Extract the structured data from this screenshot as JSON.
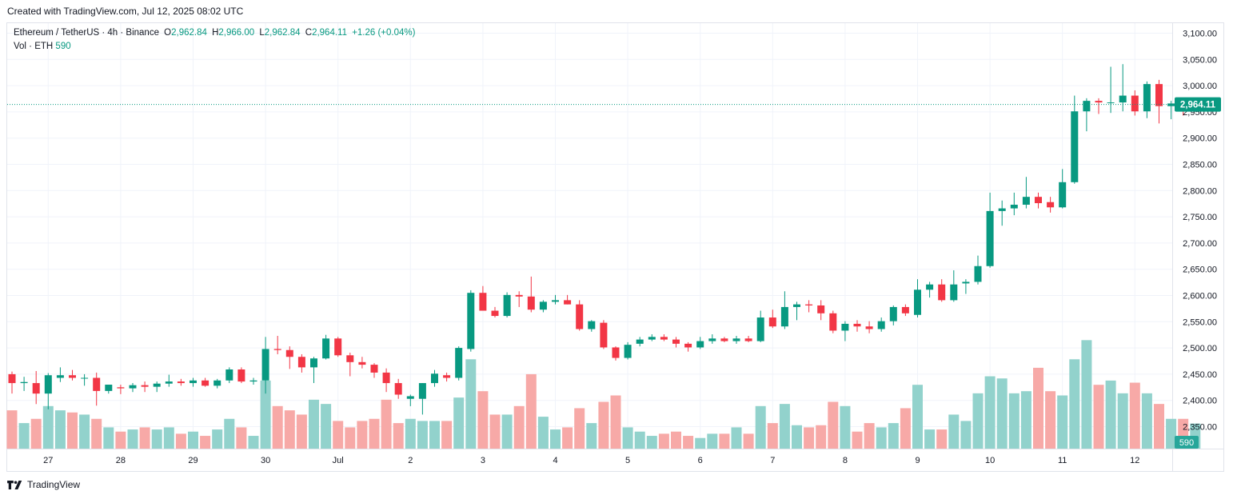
{
  "header": {
    "created_text": "Created with TradingView.com, Jul 12, 2025 08:02 UTC"
  },
  "legend": {
    "symbol": "Ethereum / TetherUS · 4h · Binance",
    "o_label": "O",
    "o_value": "2,962.84",
    "h_label": "H",
    "h_value": "2,966.00",
    "l_label": "L",
    "l_value": "2,962.84",
    "c_label": "C",
    "c_value": "2,964.11",
    "change": "+1.26 (+0.04%)",
    "vol_label": "Vol · ETH",
    "vol_value": "590"
  },
  "footer": {
    "brand": "TradingView"
  },
  "colors": {
    "up": "#089981",
    "down": "#f23645",
    "up_vol": "#92d2cc",
    "down_vol": "#f7a9a7",
    "grid": "#f0f3fa",
    "text": "#131722"
  },
  "chart_data": {
    "type": "candlestick",
    "title": "Ethereum / TetherUS · 4h · Binance",
    "ylim": [
      2300,
      3110
    ],
    "y_ticks": [
      3100,
      3050,
      3000,
      2950,
      2900,
      2850,
      2800,
      2750,
      2700,
      2650,
      2600,
      2550,
      2500,
      2450,
      2400,
      2350
    ],
    "y_tick_labels": [
      "3,100.00",
      "3,050.00",
      "3,000.00",
      "2,950.00",
      "2,900.00",
      "2,850.00",
      "2,800.00",
      "2,750.00",
      "2,700.00",
      "2,650.00",
      "2,600.00",
      "2,550.00",
      "2,500.00",
      "2,450.00",
      "2,400.00",
      "2,350.00"
    ],
    "x_labels": [
      {
        "label": "27",
        "index": 3
      },
      {
        "label": "28",
        "index": 9
      },
      {
        "label": "29",
        "index": 15
      },
      {
        "label": "30",
        "index": 21
      },
      {
        "label": "Jul",
        "index": 27
      },
      {
        "label": "2",
        "index": 33
      },
      {
        "label": "3",
        "index": 39
      },
      {
        "label": "4",
        "index": 45
      },
      {
        "label": "5",
        "index": 51
      },
      {
        "label": "6",
        "index": 57
      },
      {
        "label": "7",
        "index": 63
      },
      {
        "label": "8",
        "index": 69
      },
      {
        "label": "9",
        "index": 75
      },
      {
        "label": "10",
        "index": 81
      },
      {
        "label": "11",
        "index": 87
      },
      {
        "label": "12",
        "index": 93
      }
    ],
    "last_price": 2964.11,
    "last_price_label": "2,964.11",
    "last_volume_label": "590",
    "vol_max": 2500,
    "candles": [
      [
        2450,
        2455,
        2413,
        2433,
        900
      ],
      [
        2433,
        2445,
        2418,
        2435,
        600
      ],
      [
        2433,
        2456,
        2393,
        2413,
        700
      ],
      [
        2413,
        2452,
        2383,
        2448,
        1000
      ],
      [
        2443,
        2463,
        2435,
        2448,
        900
      ],
      [
        2448,
        2458,
        2438,
        2443,
        850
      ],
      [
        2443,
        2450,
        2428,
        2443,
        800
      ],
      [
        2443,
        2453,
        2390,
        2418,
        700
      ],
      [
        2418,
        2428,
        2413,
        2430,
        500
      ],
      [
        2425,
        2430,
        2412,
        2423,
        400
      ],
      [
        2423,
        2433,
        2416,
        2429,
        450
      ],
      [
        2429,
        2436,
        2416,
        2426,
        500
      ],
      [
        2426,
        2436,
        2416,
        2432,
        450
      ],
      [
        2432,
        2449,
        2426,
        2436,
        500
      ],
      [
        2436,
        2441,
        2428,
        2433,
        350
      ],
      [
        2433,
        2443,
        2426,
        2438,
        400
      ],
      [
        2438,
        2443,
        2426,
        2428,
        300
      ],
      [
        2428,
        2441,
        2423,
        2438,
        450
      ],
      [
        2438,
        2463,
        2433,
        2459,
        700
      ],
      [
        2459,
        2463,
        2433,
        2436,
        500
      ],
      [
        2436,
        2443,
        2430,
        2438,
        300
      ],
      [
        2438,
        2521,
        2413,
        2498,
        1600
      ],
      [
        2498,
        2523,
        2488,
        2496,
        1000
      ],
      [
        2496,
        2503,
        2460,
        2483,
        900
      ],
      [
        2483,
        2488,
        2453,
        2463,
        800
      ],
      [
        2463,
        2483,
        2433,
        2480,
        1150
      ],
      [
        2480,
        2525,
        2478,
        2518,
        1050
      ],
      [
        2518,
        2521,
        2483,
        2486,
        650
      ],
      [
        2486,
        2491,
        2446,
        2473,
        500
      ],
      [
        2473,
        2483,
        2461,
        2468,
        650
      ],
      [
        2468,
        2471,
        2443,
        2453,
        700
      ],
      [
        2453,
        2461,
        2416,
        2433,
        1150
      ],
      [
        2433,
        2441,
        2403,
        2411,
        600
      ],
      [
        2403,
        2411,
        2389,
        2408,
        700
      ],
      [
        2403,
        2433,
        2373,
        2433,
        650
      ],
      [
        2433,
        2458,
        2426,
        2451,
        650
      ],
      [
        2448,
        2453,
        2436,
        2443,
        650
      ],
      [
        2443,
        2503,
        2438,
        2500,
        1200
      ],
      [
        2498,
        2610,
        2493,
        2605,
        2100
      ],
      [
        2605,
        2618,
        2573,
        2571,
        1350
      ],
      [
        2571,
        2578,
        2558,
        2561,
        800
      ],
      [
        2561,
        2606,
        2558,
        2601,
        800
      ],
      [
        2601,
        2608,
        2578,
        2598,
        1000
      ],
      [
        2598,
        2636,
        2568,
        2573,
        1750
      ],
      [
        2573,
        2591,
        2568,
        2588,
        750
      ],
      [
        2588,
        2601,
        2583,
        2591,
        450
      ],
      [
        2591,
        2601,
        2583,
        2583,
        500
      ],
      [
        2583,
        2591,
        2533,
        2536,
        950
      ],
      [
        2536,
        2553,
        2531,
        2551,
        600
      ],
      [
        2548,
        2553,
        2498,
        2501,
        1100
      ],
      [
        2501,
        2503,
        2476,
        2481,
        1250
      ],
      [
        2481,
        2511,
        2478,
        2506,
        500
      ],
      [
        2508,
        2521,
        2503,
        2516,
        400
      ],
      [
        2516,
        2526,
        2513,
        2521,
        300
      ],
      [
        2521,
        2526,
        2513,
        2516,
        350
      ],
      [
        2516,
        2521,
        2501,
        2508,
        400
      ],
      [
        2508,
        2511,
        2493,
        2501,
        300
      ],
      [
        2501,
        2521,
        2498,
        2513,
        250
      ],
      [
        2513,
        2526,
        2508,
        2518,
        350
      ],
      [
        2518,
        2521,
        2511,
        2513,
        350
      ],
      [
        2513,
        2523,
        2508,
        2518,
        500
      ],
      [
        2518,
        2523,
        2511,
        2513,
        350
      ],
      [
        2513,
        2571,
        2511,
        2558,
        1000
      ],
      [
        2558,
        2573,
        2538,
        2541,
        600
      ],
      [
        2541,
        2608,
        2536,
        2578,
        1050
      ],
      [
        2578,
        2588,
        2553,
        2583,
        550
      ],
      [
        2583,
        2591,
        2568,
        2581,
        500
      ],
      [
        2581,
        2591,
        2553,
        2566,
        550
      ],
      [
        2566,
        2571,
        2528,
        2533,
        1100
      ],
      [
        2533,
        2551,
        2513,
        2546,
        1000
      ],
      [
        2546,
        2553,
        2531,
        2541,
        400
      ],
      [
        2541,
        2551,
        2528,
        2536,
        600
      ],
      [
        2536,
        2558,
        2531,
        2551,
        500
      ],
      [
        2551,
        2581,
        2543,
        2578,
        600
      ],
      [
        2578,
        2583,
        2561,
        2566,
        950
      ],
      [
        2563,
        2631,
        2558,
        2611,
        1500
      ],
      [
        2611,
        2626,
        2596,
        2621,
        450
      ],
      [
        2621,
        2631,
        2588,
        2591,
        450
      ],
      [
        2591,
        2648,
        2588,
        2621,
        800
      ],
      [
        2623,
        2631,
        2603,
        2626,
        650
      ],
      [
        2626,
        2676,
        2621,
        2656,
        1300
      ],
      [
        2656,
        2796,
        2653,
        2761,
        1700
      ],
      [
        2761,
        2781,
        2733,
        2766,
        1650
      ],
      [
        2766,
        2796,
        2753,
        2773,
        1300
      ],
      [
        2773,
        2826,
        2766,
        2788,
        1350
      ],
      [
        2788,
        2796,
        2766,
        2776,
        1900
      ],
      [
        2778,
        2788,
        2758,
        2768,
        1350
      ],
      [
        2768,
        2841,
        2766,
        2816,
        1250
      ],
      [
        2816,
        2981,
        2813,
        2951,
        2100
      ],
      [
        2951,
        2976,
        2913,
        2971,
        2550
      ],
      [
        2971,
        2976,
        2946,
        2968,
        1500
      ],
      [
        2968,
        3036,
        2948,
        2968,
        1600
      ],
      [
        2968,
        3041,
        2951,
        2981,
        1300
      ],
      [
        2981,
        2991,
        2943,
        2951,
        1550
      ],
      [
        2951,
        3008,
        2938,
        3003,
        1300
      ],
      [
        3003,
        3011,
        2928,
        2961,
        1050
      ],
      [
        2961,
        2971,
        2936,
        2966,
        700
      ],
      [
        2966,
        2973,
        2943,
        2963,
        700
      ],
      [
        2963,
        2966,
        2963,
        2964,
        590
      ]
    ]
  }
}
